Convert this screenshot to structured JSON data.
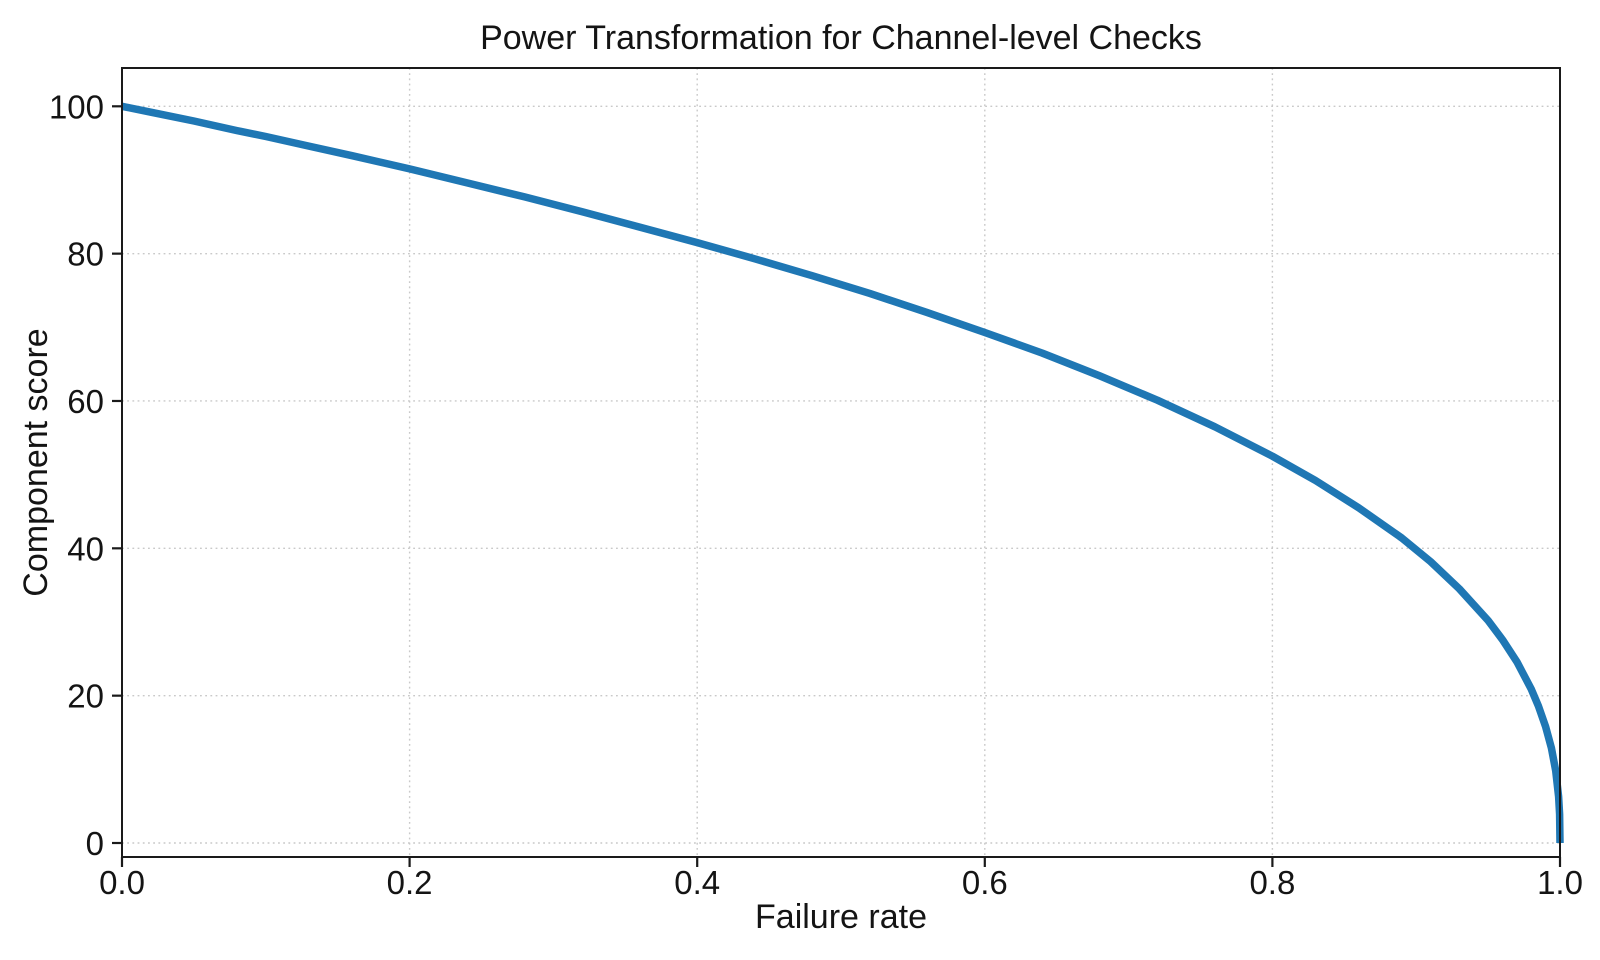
{
  "chart_data": {
    "type": "line",
    "title": "Power Transformation for Channel-level Checks",
    "xlabel": "Failure rate",
    "ylabel": "Component score",
    "xlim": [
      0.0,
      1.0
    ],
    "ylim": [
      -1.9,
      105.2
    ],
    "xticks": {
      "values": [
        0.0,
        0.2,
        0.4,
        0.6,
        0.8,
        1.0
      ],
      "labels": [
        "0.0",
        "0.2",
        "0.4",
        "0.6",
        "0.8",
        "1.0"
      ]
    },
    "yticks": {
      "values": [
        0,
        20,
        40,
        60,
        80,
        100
      ],
      "labels": [
        "0",
        "20",
        "40",
        "60",
        "80",
        "100"
      ]
    },
    "grid": true,
    "grid_style": "dotted",
    "legend_position": "none",
    "series": [
      {
        "name": "component-score-curve",
        "color": "#1f77b4",
        "line_width": 7.5,
        "x": [
          0,
          0.02,
          0.05,
          0.08,
          0.1,
          0.13,
          0.16,
          0.2,
          0.24,
          0.28,
          0.32,
          0.36,
          0.4,
          0.44,
          0.48,
          0.52,
          0.56,
          0.6,
          0.64,
          0.68,
          0.72,
          0.76,
          0.8,
          0.83,
          0.86,
          0.89,
          0.91,
          0.93,
          0.95,
          0.96,
          0.97,
          0.98,
          0.985,
          0.99,
          0.994,
          0.997,
          0.999,
          0.9997,
          1.0
        ],
        "y": [
          100,
          99.2,
          98.0,
          96.7,
          95.9,
          94.6,
          93.3,
          91.5,
          89.6,
          87.7,
          85.7,
          83.6,
          81.5,
          79.3,
          77.0,
          74.6,
          72.0,
          69.3,
          66.5,
          63.4,
          60.1,
          56.5,
          52.5,
          49.2,
          45.5,
          41.4,
          38.2,
          34.5,
          30.2,
          27.6,
          24.6,
          20.9,
          18.6,
          15.8,
          12.9,
          9.8,
          6.3,
          3.9,
          0
        ]
      }
    ]
  },
  "colors": {
    "line": "#1f77b4",
    "grid": "#c9c9c9",
    "spine": "#1a1a1a",
    "tick": "#1a1a1a",
    "text": "#141414",
    "background": "#ffffff"
  }
}
